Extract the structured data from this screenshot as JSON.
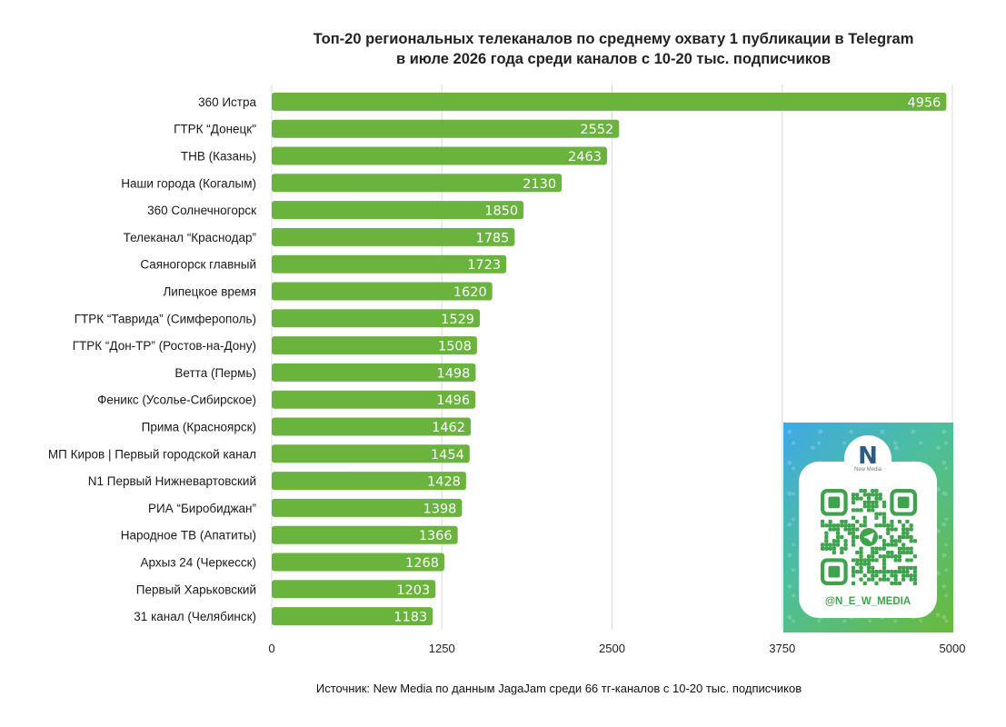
{
  "chart_data": {
    "type": "bar",
    "orientation": "horizontal",
    "title": [
      "Топ-20 региональных телеканалов по среднему охвату 1 публикации в Telegram",
      "в июле 2026 года среди каналов с 10-20 тыс. подписчиков"
    ],
    "categories": [
      "360 Истра",
      "ГТРК “Донецк\"",
      "ТНВ (Казань)",
      "Наши города (Когалым)",
      "360 Солнечногорск",
      "Телеканал “Краснодар”",
      "Саяногорск главный",
      "Липецкое время",
      "ГТРК “Таврида” (Симферополь)",
      "ГТРК “Дон-ТР” (Ростов-на-Дону)",
      "Ветта (Пермь)",
      "Феникс (Усолье-Сибирское)",
      "Прима (Красноярск)",
      "МП Киров | Первый городской канал",
      "N1 Первый Нижневартовский",
      "РИА “Биробиджан”",
      "Народное ТВ (Апатиты)",
      "Архыз 24 (Черкесск)",
      "Первый Харьковский",
      "31 канал (Челябинск)"
    ],
    "values": [
      4956,
      2552,
      2463,
      2130,
      1850,
      1785,
      1723,
      1620,
      1529,
      1508,
      1498,
      1496,
      1462,
      1454,
      1428,
      1398,
      1366,
      1268,
      1203,
      1183
    ],
    "xlim": [
      0,
      5000
    ],
    "xticks": [
      "0",
      "1250",
      "2500",
      "3750",
      "5000"
    ],
    "xlabel": "",
    "ylabel": "",
    "grid": true,
    "legend": "none",
    "bar_color": "#6ab43e",
    "data_labels": "inside-end"
  },
  "source_note": "Источник: New Media по данным JagaJam среди 66 тг-каналов с 10-20 тыс. подписчиков",
  "qr_card": {
    "logo_text": "New Media",
    "handle": "@N_E_W_MEDIA",
    "accent_color": "#3fa34d",
    "qr_color": "#3fa34d",
    "icon": "telegram-plane-icon"
  }
}
